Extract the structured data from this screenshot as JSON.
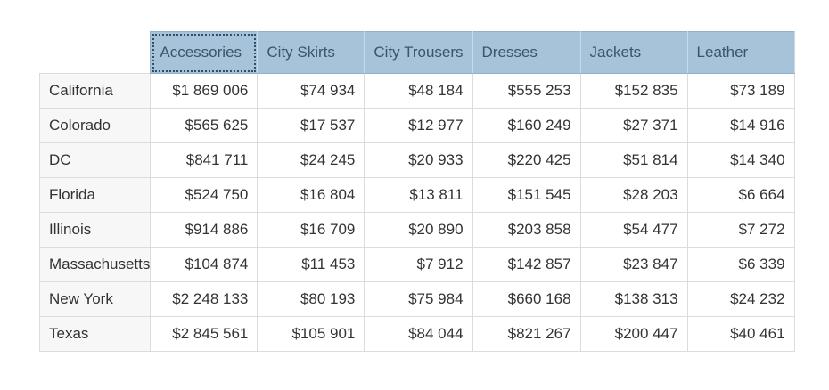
{
  "columns": [
    "Accessories",
    "City Skirts",
    "City Trousers",
    "Dresses",
    "Jackets",
    "Leather"
  ],
  "selected_column": "Accessories",
  "colors": {
    "header_bg": "#a6c3d9",
    "header_text": "#3b5468",
    "row_header_bg": "#f7f7f7",
    "grid_line": "#dcdcdc"
  },
  "rows": [
    {
      "label": "California",
      "values": [
        "$1 869 006",
        "$74 934",
        "$48 184",
        "$555 253",
        "$152 835",
        "$73 189"
      ]
    },
    {
      "label": "Colorado",
      "values": [
        "$565 625",
        "$17 537",
        "$12 977",
        "$160 249",
        "$27 371",
        "$14 916"
      ]
    },
    {
      "label": "DC",
      "values": [
        "$841 711",
        "$24 245",
        "$20 933",
        "$220 425",
        "$51 814",
        "$14 340"
      ]
    },
    {
      "label": "Florida",
      "values": [
        "$524 750",
        "$16 804",
        "$13 811",
        "$151 545",
        "$28 203",
        "$6 664"
      ]
    },
    {
      "label": "Illinois",
      "values": [
        "$914 886",
        "$16 709",
        "$20 890",
        "$203 858",
        "$54 477",
        "$7 272"
      ]
    },
    {
      "label": "Massachusetts",
      "values": [
        "$104 874",
        "$11 453",
        "$7 912",
        "$142 857",
        "$23 847",
        "$6 339"
      ]
    },
    {
      "label": "New York",
      "values": [
        "$2 248 133",
        "$80 193",
        "$75 984",
        "$660 168",
        "$138 313",
        "$24 232"
      ]
    },
    {
      "label": "Texas",
      "values": [
        "$2 845 561",
        "$105 901",
        "$84 044",
        "$821 267",
        "$200 447",
        "$40 461"
      ]
    }
  ]
}
